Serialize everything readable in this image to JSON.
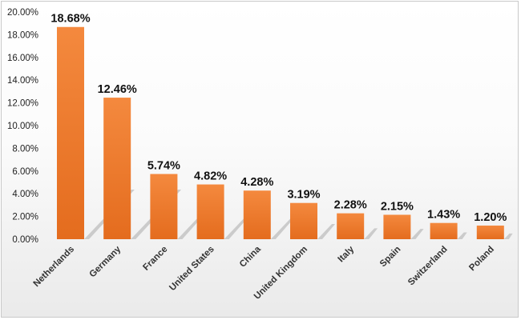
{
  "chart_data": {
    "type": "bar",
    "title": "",
    "xlabel": "",
    "ylabel": "",
    "categories": [
      "Netherlands",
      "Germany",
      "France",
      "United States",
      "China",
      "United Kingdom",
      "Italy",
      "Spain",
      "Switzerland",
      "Poland"
    ],
    "values": [
      18.68,
      12.46,
      5.74,
      4.82,
      4.28,
      3.19,
      2.28,
      2.15,
      1.43,
      1.2
    ],
    "data_labels": [
      "18.68%",
      "12.46%",
      "5.74%",
      "4.82%",
      "4.28%",
      "3.19%",
      "2.28%",
      "2.15%",
      "1.43%",
      "1.20%"
    ],
    "ylim": [
      0,
      20
    ],
    "yticks": [
      0,
      2,
      4,
      6,
      8,
      10,
      12,
      14,
      16,
      18,
      20
    ],
    "ytick_labels": [
      "0.00%",
      "2.00%",
      "4.00%",
      "6.00%",
      "8.00%",
      "10.00%",
      "12.00%",
      "14.00%",
      "16.00%",
      "18.00%",
      "20.00%"
    ],
    "grid": false,
    "legend": "none",
    "colors": {
      "bar_top": "#f4893e",
      "bar_bottom": "#e46c1e",
      "shadow": "#bdbdbd"
    }
  }
}
